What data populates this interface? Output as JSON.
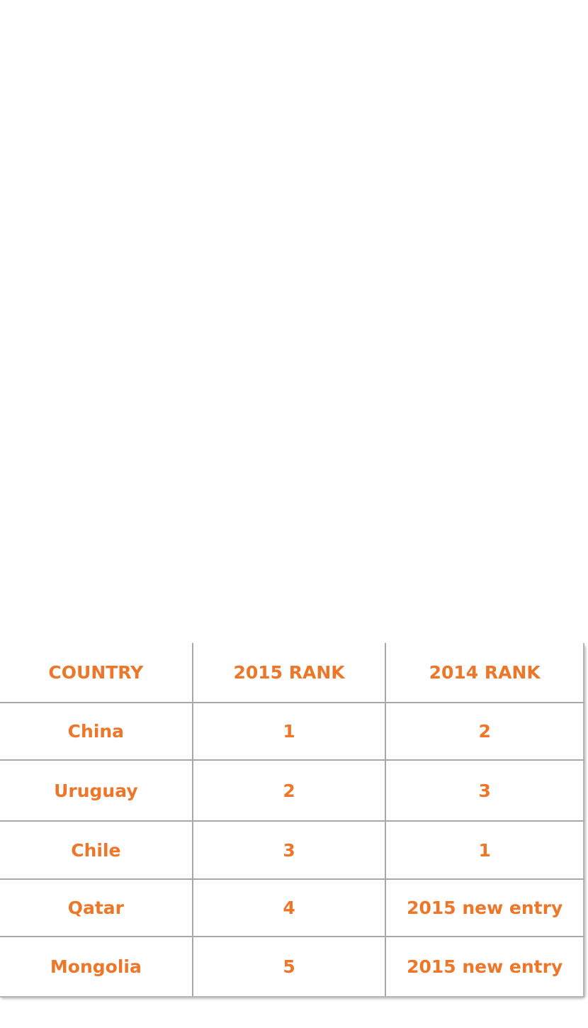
{
  "table": {
    "headers": [
      "COUNTRY",
      "2015 RANK",
      "2014 RANK"
    ],
    "rows": [
      [
        "China",
        "1",
        "2"
      ],
      [
        "Uruguay",
        "2",
        "3"
      ],
      [
        "Chile",
        "3",
        "1"
      ],
      [
        "Qatar",
        "4",
        "2015 new entry"
      ],
      [
        "Mongolia",
        "5",
        "2015 new entry"
      ]
    ]
  },
  "colors": {
    "text": "#ee7628",
    "grid": "#a8a8a8",
    "background": "#ffffff"
  }
}
